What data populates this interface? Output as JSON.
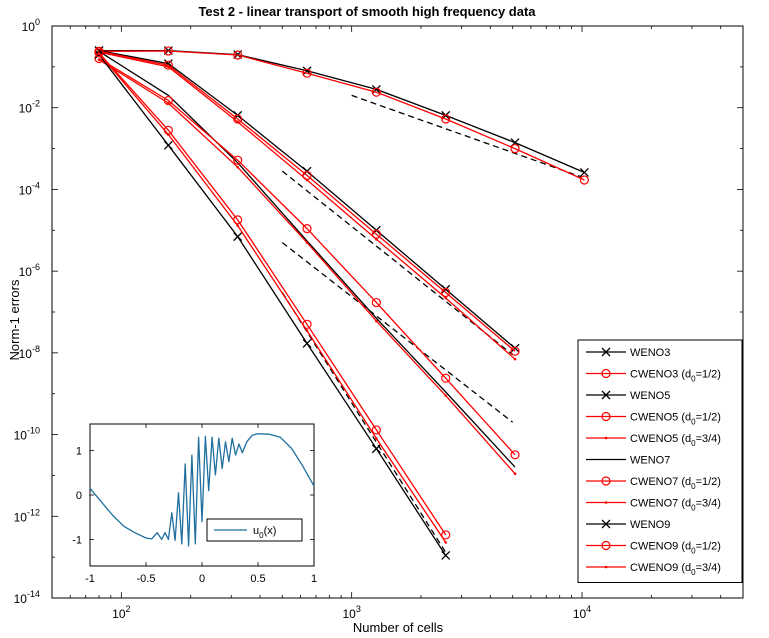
{
  "chart_data": [
    {
      "type": "line",
      "title": "Test 2 - linear transport of smooth high frequency data",
      "xlabel": "Number of cells",
      "ylabel": "Norm-1 errors",
      "xscale": "log",
      "yscale": "log",
      "xlim": [
        50,
        50000
      ],
      "ylim": [
        1e-14,
        1
      ],
      "grid": false,
      "legend_position": "right",
      "x_tick_labels": [
        {
          "base": "10",
          "exp": "2",
          "value": 100
        },
        {
          "base": "10",
          "exp": "3",
          "value": 1000
        },
        {
          "base": "10",
          "exp": "4",
          "value": 10000
        }
      ],
      "y_tick_labels": [
        {
          "base": "10",
          "exp": "0",
          "value": 1
        },
        {
          "base": "10",
          "exp": "-2",
          "value": 0.01
        },
        {
          "base": "10",
          "exp": "-4",
          "value": 0.0001
        },
        {
          "base": "10",
          "exp": "-6",
          "value": 1e-06
        },
        {
          "base": "10",
          "exp": "-8",
          "value": 1e-08
        },
        {
          "base": "10",
          "exp": "-10",
          "value": 1e-10
        },
        {
          "base": "10",
          "exp": "-12",
          "value": 1e-12
        },
        {
          "base": "10",
          "exp": "-14",
          "value": 1e-14
        }
      ],
      "series": [
        {
          "name": "WENO3",
          "legend_label": "WENO3",
          "color": "#000000",
          "marker": "x",
          "x": [
            80,
            160,
            320,
            640,
            1280,
            2560,
            5120,
            10240
          ],
          "y": [
            0.25,
            0.25,
            0.2,
            0.08,
            0.028,
            0.0065,
            0.0014,
            0.00026
          ]
        },
        {
          "name": "CWENO3 (d0=1/2)",
          "legend_label": "CWENO3 (d",
          "legend_sub": "0",
          "legend_after": "=1/2)",
          "color": "#ff0000",
          "marker": "o",
          "x": [
            80,
            160,
            320,
            640,
            1280,
            2560,
            5120,
            10240
          ],
          "y": [
            0.24,
            0.245,
            0.195,
            0.07,
            0.024,
            0.0053,
            0.001,
            0.00017
          ]
        },
        {
          "name": "WENO5",
          "legend_label": "WENO5",
          "color": "#000000",
          "marker": "x",
          "x": [
            80,
            160,
            320,
            640,
            1280,
            2560,
            5120
          ],
          "y": [
            0.25,
            0.12,
            0.0065,
            0.00028,
            1e-05,
            3.6e-07,
            1.3e-08
          ]
        },
        {
          "name": "CWENO5 (d0=1/2)",
          "legend_label": "CWENO5 (d",
          "legend_sub": "0",
          "legend_after": "=1/2)",
          "color": "#ff0000",
          "marker": "o",
          "x": [
            80,
            160,
            320,
            640,
            1280,
            2560,
            5120
          ],
          "y": [
            0.24,
            0.11,
            0.0053,
            0.00022,
            8e-06,
            3e-07,
            1.1e-08
          ]
        },
        {
          "name": "CWENO5 (d0=3/4)",
          "legend_label": "CWENO5 (d",
          "legend_sub": "0",
          "legend_after": "=3/4)",
          "color": "#ff0000",
          "marker": ".",
          "x": [
            80,
            160,
            320,
            640,
            1280,
            2560,
            5120
          ],
          "y": [
            0.23,
            0.1,
            0.0045,
            0.00017,
            6e-06,
            2.2e-07,
            7e-09
          ]
        },
        {
          "name": "WENO7",
          "legend_label": "WENO7",
          "color": "#000000",
          "marker": "none",
          "x": [
            80,
            160,
            320,
            640,
            1280,
            2560,
            5120
          ],
          "y": [
            0.24,
            0.02,
            0.00045,
            5.5e-06,
            7e-08,
            1.1e-09,
            1.6e-11
          ]
        },
        {
          "name": "CWENO7 (d0=1/2)",
          "legend_label": "CWENO7 (d",
          "legend_sub": "0",
          "legend_after": "=1/2)",
          "color": "#ff0000",
          "marker": "o",
          "x": [
            80,
            160,
            320,
            640,
            1280,
            2560,
            5120
          ],
          "y": [
            0.16,
            0.015,
            0.00052,
            1.1e-05,
            1.7e-07,
            2.4e-09,
            3.2e-11
          ]
        },
        {
          "name": "CWENO7 (d0=3/4)",
          "legend_label": "CWENO7 (d",
          "legend_sub": "0",
          "legend_after": "=3/4)",
          "color": "#ff0000",
          "marker": ".",
          "x": [
            80,
            160,
            320,
            640,
            1280,
            2560,
            5120
          ],
          "y": [
            0.15,
            0.013,
            0.00035,
            5e-06,
            6e-08,
            9e-10,
            1.1e-11
          ]
        },
        {
          "name": "WENO9",
          "legend_label": "WENO9",
          "color": "#000000",
          "marker": "x",
          "x": [
            80,
            160,
            320,
            640,
            1280,
            2560
          ],
          "y": [
            0.2,
            0.0012,
            7e-06,
            1.7e-08,
            4.5e-11,
            1.1e-13
          ]
        },
        {
          "name": "CWENO9 (d0=1/2)",
          "legend_label": "CWENO9 (d",
          "legend_sub": "0",
          "legend_after": "=1/2)",
          "color": "#ff0000",
          "marker": "o",
          "x": [
            80,
            160,
            320,
            640,
            1280,
            2560
          ],
          "y": [
            0.22,
            0.0028,
            1.8e-05,
            5e-08,
            1.3e-10,
            3.5e-13
          ]
        },
        {
          "name": "CWENO9 (d0=3/4)",
          "legend_label": "CWENO9 (d",
          "legend_sub": "0",
          "legend_after": "=3/4)",
          "color": "#ff0000",
          "marker": ".",
          "x": [
            80,
            160,
            320,
            640,
            1280,
            2560
          ],
          "y": [
            0.21,
            0.0022,
            1.3e-05,
            3.5e-08,
            8e-11,
            2.3e-13
          ]
        }
      ],
      "reference_lines": [
        {
          "style": "dashed",
          "color": "#000000",
          "x": [
            1000,
            10000
          ],
          "y": [
            0.02,
            0.0002
          ]
        },
        {
          "style": "dashed",
          "color": "#000000",
          "x": [
            500,
            5000
          ],
          "y": [
            0.00028,
            9e-09
          ]
        },
        {
          "style": "dashed",
          "color": "#000000",
          "x": [
            500,
            5000
          ],
          "y": [
            5e-06,
            2e-10
          ]
        },
        {
          "style": "dashed",
          "color": "#000000",
          "x": [
            500,
            2560
          ],
          "y": [
            3e-07,
            1.3e-13
          ]
        }
      ]
    },
    {
      "type": "line",
      "title": "",
      "xlim": [
        -1,
        1
      ],
      "ylim": [
        -1.6,
        1.6
      ],
      "x_ticks": [
        -1,
        -0.5,
        0,
        0.5,
        1
      ],
      "x_tick_labels": [
        "-1",
        "-0.5",
        "0",
        "0.5",
        "1"
      ],
      "y_ticks": [
        -1,
        0,
        1
      ],
      "y_tick_labels": [
        "-1",
        "0",
        "1"
      ],
      "legend_position": "bottom-right",
      "series": [
        {
          "name": "u0(x)",
          "legend_base": "u",
          "legend_sub": "0",
          "legend_after": "(x)",
          "color": "#1f6f9f",
          "x": [
            -1,
            -0.9,
            -0.8,
            -0.7,
            -0.6,
            -0.5,
            -0.45,
            -0.4,
            -0.36,
            -0.33,
            -0.3,
            -0.27,
            -0.24,
            -0.21,
            -0.18,
            -0.15,
            -0.12,
            -0.09,
            -0.06,
            -0.03,
            0.0,
            0.03,
            0.06,
            0.09,
            0.12,
            0.15,
            0.18,
            0.21,
            0.24,
            0.27,
            0.3,
            0.33,
            0.36,
            0.4,
            0.45,
            0.5,
            0.6,
            0.7,
            0.8,
            0.9,
            1.0
          ],
          "y": [
            0.15,
            -0.15,
            -0.45,
            -0.7,
            -0.85,
            -0.97,
            -0.99,
            -0.85,
            -1.0,
            -0.85,
            -1.0,
            -0.4,
            -1.02,
            0.05,
            -1.1,
            0.7,
            -1.15,
            0.9,
            -1.1,
            1.3,
            -0.6,
            1.32,
            0.1,
            1.3,
            0.45,
            1.28,
            0.6,
            1.2,
            0.75,
            1.28,
            0.9,
            1.15,
            0.95,
            1.2,
            1.35,
            1.38,
            1.37,
            1.3,
            1.05,
            0.65,
            0.2
          ]
        }
      ]
    }
  ]
}
